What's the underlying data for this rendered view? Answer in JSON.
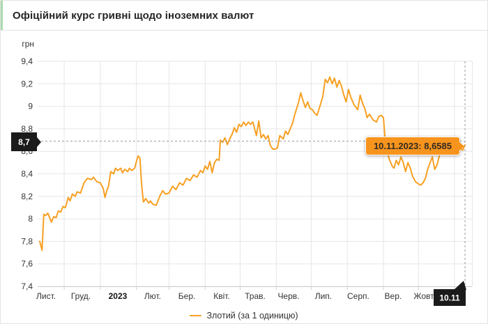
{
  "header": {
    "title": "Офіційний курс гривні щодо іноземних валют",
    "accent_color": "#a9d9ae"
  },
  "chart_data": {
    "type": "line",
    "title": "Офіційний курс гривні щодо іноземних валют",
    "ylabel": "грн",
    "ylim": [
      7.4,
      9.4
    ],
    "grid": true,
    "x_range": {
      "start": "2022-11-10",
      "end": "2023-11-10",
      "days": 365
    },
    "y_ticks": [
      {
        "label": "9,4",
        "value": 9.4
      },
      {
        "label": "9,2",
        "value": 9.2
      },
      {
        "label": "9",
        "value": 9.0
      },
      {
        "label": "8,8",
        "value": 8.8
      },
      {
        "label": "8,6",
        "value": 8.6
      },
      {
        "label": "8,4",
        "value": 8.4
      },
      {
        "label": "8,2",
        "value": 8.2
      },
      {
        "label": "8",
        "value": 8.0
      },
      {
        "label": "7,8",
        "value": 7.8
      },
      {
        "label": "7,6",
        "value": 7.6
      },
      {
        "label": "7,4",
        "value": 7.4
      }
    ],
    "x_ticks": [
      {
        "label": "Лист.",
        "day": 5.4
      },
      {
        "label": "Груд.",
        "day": 35.3
      },
      {
        "label": "2023",
        "day": 67.0,
        "bold": true
      },
      {
        "label": "Лют.",
        "day": 96.9
      },
      {
        "label": "Бер.",
        "day": 126.3
      },
      {
        "label": "Квіт.",
        "day": 156.2
      },
      {
        "label": "Трав.",
        "day": 184.9
      },
      {
        "label": "Черв.",
        "day": 213.6
      },
      {
        "label": "Лип.",
        "day": 243.5
      },
      {
        "label": "Серп.",
        "day": 273.4
      },
      {
        "label": "Вер.",
        "day": 303.3
      },
      {
        "label": "Жовт.",
        "day": 330.3
      }
    ],
    "month_start_days": [
      21,
      52,
      83,
      111,
      142,
      172,
      203,
      233,
      264,
      295,
      325,
      356
    ],
    "series": [
      {
        "name": "Злотий (за 1 одиницю)",
        "color": "#f7a022",
        "points": [
          [
            0,
            7.8
          ],
          [
            1.5,
            7.74
          ],
          [
            2,
            7.72
          ],
          [
            3.5,
            8.04
          ],
          [
            5,
            8.03
          ],
          [
            7,
            8.05
          ],
          [
            10,
            7.97
          ],
          [
            12,
            8.02
          ],
          [
            14,
            8.01
          ],
          [
            16,
            8.07
          ],
          [
            18,
            8.06
          ],
          [
            20,
            8.11
          ],
          [
            22,
            8.1
          ],
          [
            24.5,
            8.19
          ],
          [
            26,
            8.16
          ],
          [
            28,
            8.22
          ],
          [
            30.5,
            8.2
          ],
          [
            32,
            8.24
          ],
          [
            35,
            8.23
          ],
          [
            38,
            8.32
          ],
          [
            41,
            8.36
          ],
          [
            44.5,
            8.35
          ],
          [
            46,
            8.37
          ],
          [
            49,
            8.33
          ],
          [
            52,
            8.32
          ],
          [
            54.5,
            8.27
          ],
          [
            56,
            8.19
          ],
          [
            57.5,
            8.25
          ],
          [
            59,
            8.29
          ],
          [
            61,
            8.42
          ],
          [
            63.5,
            8.4
          ],
          [
            65,
            8.45
          ],
          [
            67,
            8.43
          ],
          [
            69.5,
            8.45
          ],
          [
            71,
            8.41
          ],
          [
            73,
            8.44
          ],
          [
            75.5,
            8.42
          ],
          [
            77,
            8.45
          ],
          [
            79,
            8.43
          ],
          [
            81.5,
            8.45
          ],
          [
            83,
            8.51
          ],
          [
            84.5,
            8.56
          ],
          [
            86,
            8.54
          ],
          [
            87.5,
            8.3
          ],
          [
            89,
            8.15
          ],
          [
            91,
            8.18
          ],
          [
            93.5,
            8.14
          ],
          [
            95,
            8.16
          ],
          [
            97,
            8.13
          ],
          [
            100,
            8.12
          ],
          [
            103,
            8.2
          ],
          [
            105.5,
            8.25
          ],
          [
            108,
            8.22
          ],
          [
            111,
            8.23
          ],
          [
            114,
            8.29
          ],
          [
            117,
            8.26
          ],
          [
            120,
            8.32
          ],
          [
            123,
            8.3
          ],
          [
            126,
            8.36
          ],
          [
            129,
            8.34
          ],
          [
            132,
            8.39
          ],
          [
            135,
            8.37
          ],
          [
            138,
            8.43
          ],
          [
            140,
            8.41
          ],
          [
            142,
            8.47
          ],
          [
            144,
            8.44
          ],
          [
            146,
            8.51
          ],
          [
            148,
            8.41
          ],
          [
            150,
            8.5
          ],
          [
            152,
            8.53
          ],
          [
            154,
            8.52
          ],
          [
            155,
            8.7
          ],
          [
            157,
            8.68
          ],
          [
            159,
            8.72
          ],
          [
            161,
            8.66
          ],
          [
            163,
            8.71
          ],
          [
            165,
            8.75
          ],
          [
            167,
            8.81
          ],
          [
            169,
            8.77
          ],
          [
            171,
            8.84
          ],
          [
            173,
            8.82
          ],
          [
            175,
            8.86
          ],
          [
            177,
            8.83
          ],
          [
            179,
            8.86
          ],
          [
            181,
            8.84
          ],
          [
            183,
            8.86
          ],
          [
            186,
            8.74
          ],
          [
            188,
            8.87
          ],
          [
            190,
            8.72
          ],
          [
            192,
            8.75
          ],
          [
            194,
            8.71
          ],
          [
            196,
            8.74
          ],
          [
            198,
            8.65
          ],
          [
            200,
            8.62
          ],
          [
            202,
            8.62
          ],
          [
            204,
            8.63
          ],
          [
            206,
            8.74
          ],
          [
            209,
            8.71
          ],
          [
            211,
            8.78
          ],
          [
            213,
            8.75
          ],
          [
            215,
            8.8
          ],
          [
            217,
            8.85
          ],
          [
            219,
            8.93
          ],
          [
            222,
            9.03
          ],
          [
            224,
            9.12
          ],
          [
            226,
            9.05
          ],
          [
            228,
            8.99
          ],
          [
            230,
            9.04
          ],
          [
            232,
            8.98
          ],
          [
            234,
            8.97
          ],
          [
            236,
            8.94
          ],
          [
            238,
            8.92
          ],
          [
            241,
            9.02
          ],
          [
            243,
            9.09
          ],
          [
            245,
            9.24
          ],
          [
            247,
            9.21
          ],
          [
            249,
            9.26
          ],
          [
            251,
            9.2
          ],
          [
            253,
            9.25
          ],
          [
            255,
            9.17
          ],
          [
            257,
            9.23
          ],
          [
            259,
            9.18
          ],
          [
            261,
            9.1
          ],
          [
            263,
            9.04
          ],
          [
            265,
            9.15
          ],
          [
            267,
            9.08
          ],
          [
            270,
            9.01
          ],
          [
            273,
            8.97
          ],
          [
            275,
            9.1
          ],
          [
            277,
            9.03
          ],
          [
            279,
            8.98
          ],
          [
            281,
            8.9
          ],
          [
            283,
            8.93
          ],
          [
            286,
            8.88
          ],
          [
            289,
            8.86
          ],
          [
            291,
            8.91
          ],
          [
            293,
            8.92
          ],
          [
            295,
            8.9
          ],
          [
            296.5,
            8.7
          ],
          [
            298,
            8.61
          ],
          [
            300,
            8.53
          ],
          [
            302.5,
            8.47
          ],
          [
            304,
            8.45
          ],
          [
            306,
            8.52
          ],
          [
            308,
            8.48
          ],
          [
            310,
            8.55
          ],
          [
            312,
            8.5
          ],
          [
            314,
            8.42
          ],
          [
            316,
            8.5
          ],
          [
            318,
            8.45
          ],
          [
            320,
            8.38
          ],
          [
            322.5,
            8.33
          ],
          [
            325,
            8.31
          ],
          [
            327,
            8.3
          ],
          [
            329,
            8.32
          ],
          [
            331,
            8.36
          ],
          [
            333,
            8.44
          ],
          [
            335,
            8.5
          ],
          [
            337,
            8.55
          ],
          [
            339,
            8.44
          ],
          [
            341,
            8.48
          ],
          [
            343,
            8.56
          ],
          [
            345,
            8.61
          ],
          [
            347,
            8.58
          ],
          [
            349,
            8.62
          ],
          [
            351,
            8.59
          ],
          [
            353,
            8.63
          ],
          [
            355,
            8.6
          ],
          [
            357,
            8.62
          ],
          [
            359,
            8.6
          ],
          [
            361,
            8.63
          ],
          [
            363,
            8.61
          ],
          [
            365,
            8.6585
          ]
        ]
      }
    ],
    "last_point": {
      "date": "10.11.2023",
      "value": 8.6585
    },
    "crosshair": {
      "y_label": "8,7",
      "y_value": 8.69,
      "x_label": "10.11",
      "x_day": 365
    },
    "tooltip": {
      "text": "10.11.2023: 8,6585",
      "bg_color": "#f7941d"
    },
    "legend": {
      "position": "bottom-center"
    }
  },
  "colors": {
    "grid": "#e6e6e6",
    "axis_line": "#cfcfcf",
    "crosshair": "#999999",
    "tag_bg": "#1b1b1b"
  }
}
